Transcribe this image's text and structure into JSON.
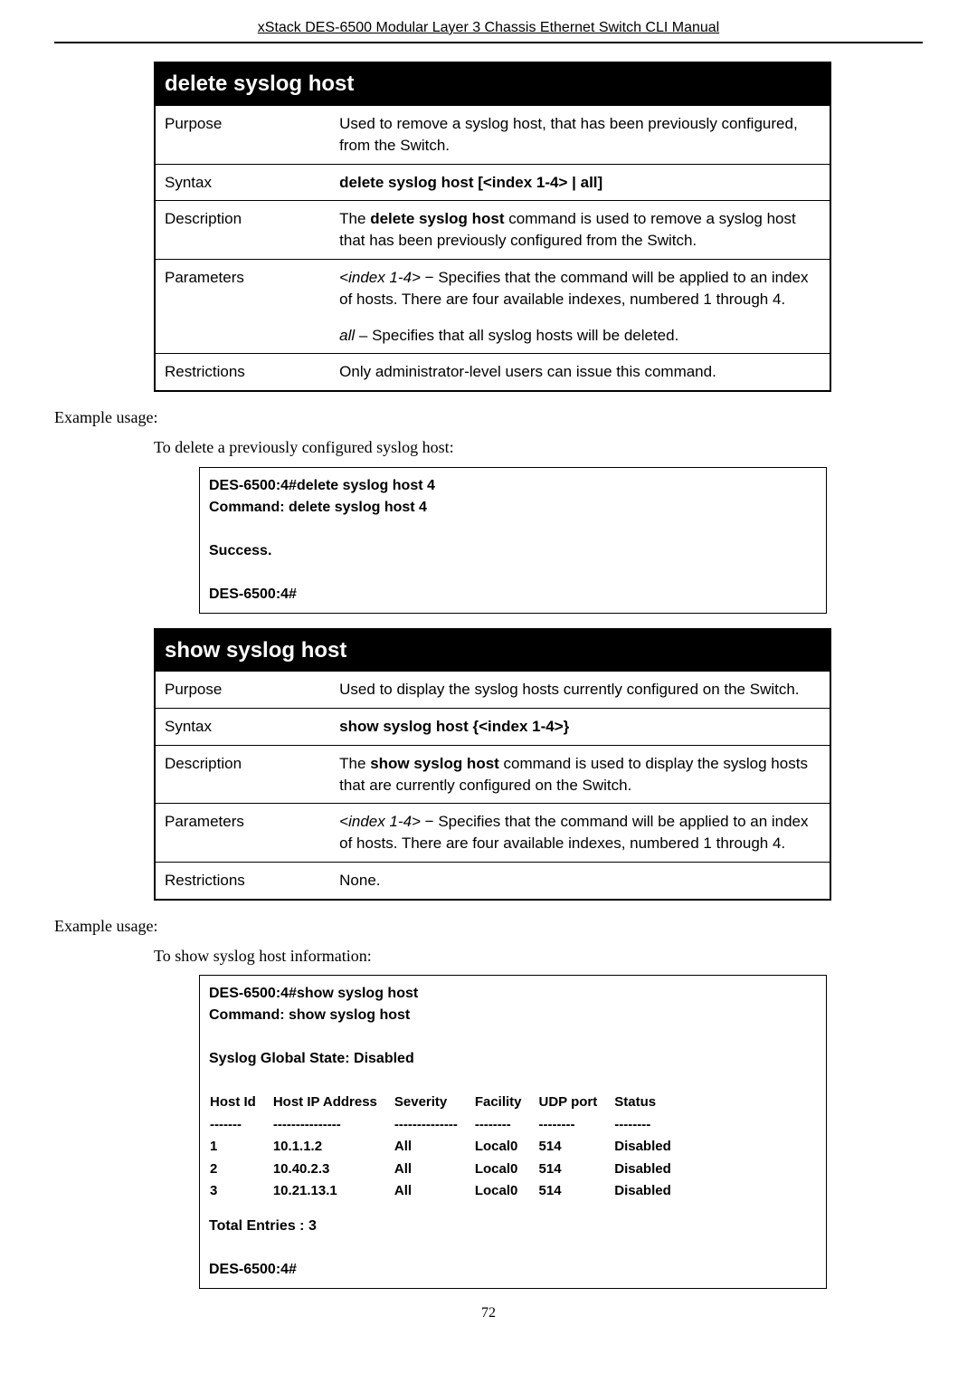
{
  "header": "xStack DES-6500 Modular Layer 3 Chassis Ethernet Switch CLI Manual",
  "table1": {
    "title": "delete syslog host",
    "rows": [
      {
        "label": "Purpose",
        "value": "Used to remove a syslog host, that has been previously configured, from the Switch."
      },
      {
        "label": "Syntax",
        "value_html": "<span class='bold'>delete syslog host [&lt;index 1-4&gt; | all]</span>"
      },
      {
        "label": "Description",
        "value_html": "The <span class='bold'>delete syslog host</span> command is used to remove a syslog host that has been previously configured from the Switch."
      },
      {
        "label": "Parameters",
        "value_html": "<span class='italic'>&lt;index 1-4&gt;</span> − Specifies that the command will be applied to an index of hosts. There are four available indexes, numbered 1 through 4."
      },
      {
        "label": "",
        "value_html": "<span class='italic'>all</span> – Specifies that all syslog hosts will be deleted."
      },
      {
        "label": "Restrictions",
        "value": "Only administrator-level users can issue this command."
      }
    ]
  },
  "example1": {
    "label": "Example usage:",
    "desc": "To delete a previously configured syslog host:",
    "lines": [
      "DES-6500:4#delete syslog host 4",
      "Command: delete syslog host 4",
      "",
      "Success.",
      "",
      "DES-6500:4#"
    ]
  },
  "table2": {
    "title": "show syslog host",
    "rows": [
      {
        "label": "Purpose",
        "value": "Used to display the syslog hosts currently configured on the Switch."
      },
      {
        "label": "Syntax",
        "value_html": "<span class='bold'>show syslog host {&lt;index 1-4&gt;}</span>"
      },
      {
        "label": "Description",
        "value_html": "The <span class='bold'>show syslog host</span> command is used to display the syslog hosts that are currently configured on the Switch."
      },
      {
        "label": "Parameters",
        "value_html": "<span class='italic'>&lt;index 1-4&gt;</span> − Specifies that the command will be applied to an index of hosts. There are four available indexes, numbered 1 through 4."
      },
      {
        "label": "Restrictions",
        "value": "None."
      }
    ]
  },
  "example2": {
    "label": "Example usage:",
    "desc": "To show syslog host information:",
    "header_lines": [
      "DES-6500:4#show syslog host",
      "Command: show syslog host",
      "",
      "Syslog Global State: Disabled",
      ""
    ],
    "table": {
      "columns": [
        "Host Id",
        "Host IP Address",
        "Severity",
        "Facility",
        "UDP port",
        "Status"
      ],
      "dashes": [
        "-------",
        "---------------",
        "--------------",
        "--------",
        "--------",
        "--------"
      ],
      "rows": [
        [
          "1",
          "10.1.1.2",
          "All",
          "Local0",
          "514",
          "Disabled"
        ],
        [
          "2",
          "10.40.2.3",
          "All",
          "Local0",
          "514",
          "Disabled"
        ],
        [
          "3",
          "10.21.13.1",
          "All",
          "Local0",
          "514",
          "Disabled"
        ]
      ]
    },
    "footer_lines": [
      "Total Entries : 3",
      "",
      "DES-6500:4#"
    ]
  },
  "page_number": "72"
}
